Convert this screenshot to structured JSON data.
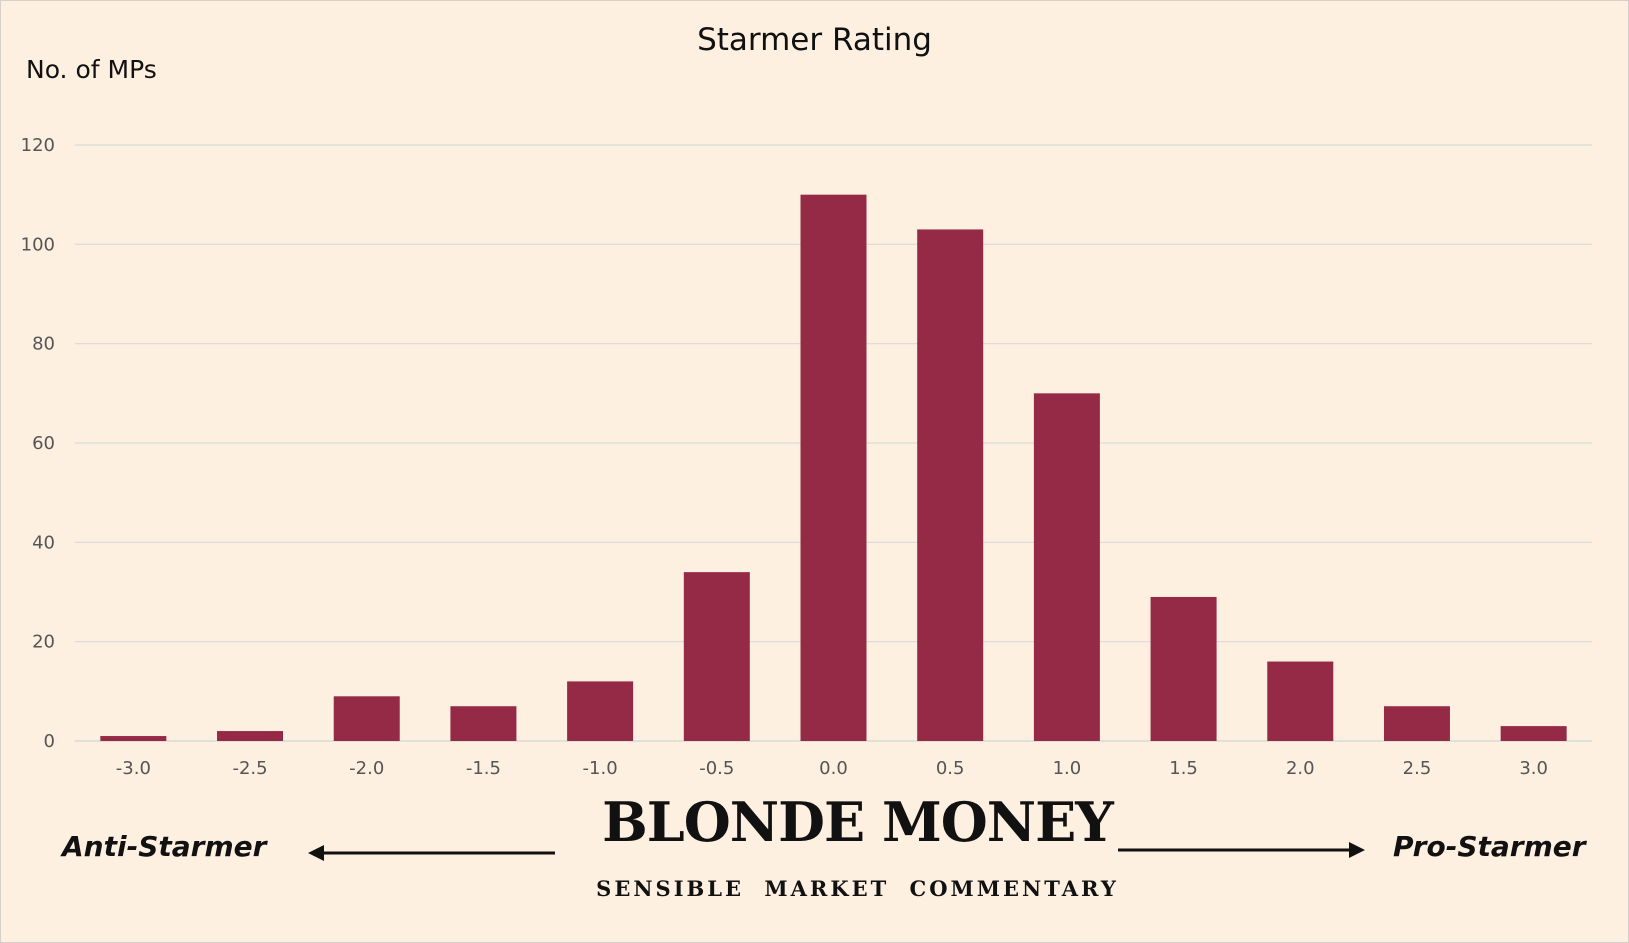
{
  "chart_data": {
    "type": "bar",
    "title": "Starmer Rating",
    "ylabel": "No. of MPs",
    "xlabel": "",
    "categories": [
      "-3.0",
      "-2.5",
      "-2.0",
      "-1.5",
      "-1.0",
      "-0.5",
      "0.0",
      "0.5",
      "1.0",
      "1.5",
      "2.0",
      "2.5",
      "3.0"
    ],
    "values": [
      1,
      2,
      9,
      7,
      12,
      34,
      110,
      103,
      70,
      29,
      16,
      7,
      3
    ],
    "ylim": [
      0,
      120
    ],
    "yticks": [
      "0",
      "20",
      "40",
      "60",
      "80",
      "100",
      "120"
    ],
    "grid": true,
    "legend": "none",
    "bar_color": "#952a47",
    "gridline_color": "#d9d9d9"
  },
  "annotations": {
    "left_label": "Anti-Starmer",
    "right_label": "Pro-Starmer"
  },
  "branding": {
    "name": "BLONDE MONEY",
    "tagline": "SENSIBLE MARKET COMMENTARY"
  }
}
